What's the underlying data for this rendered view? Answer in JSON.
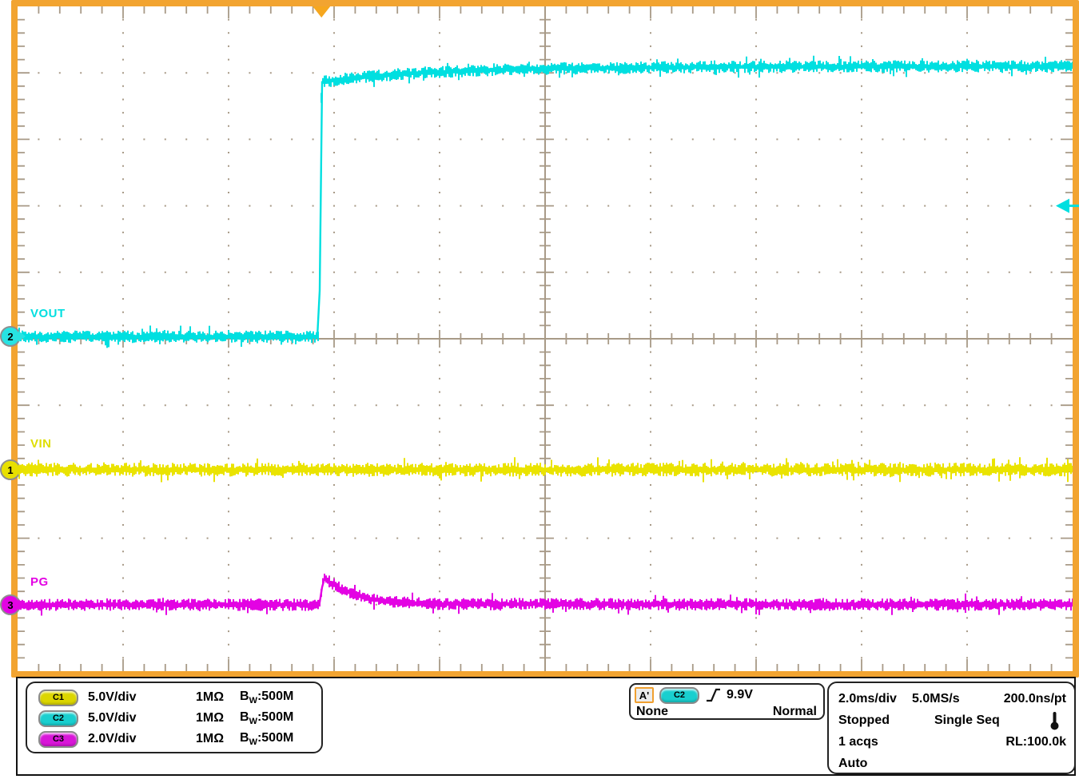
{
  "colors": {
    "frame": "#f2a431",
    "grid": "#a89a87",
    "trigger_marker": "#f6a71f",
    "trigger_arrow": "#00dfe0"
  },
  "channels": [
    {
      "id": "C1",
      "number": "1",
      "label": "VIN",
      "scale": "5.0V/div",
      "impedance": "1MΩ",
      "bw_b": "B",
      "bw_sub": "W",
      "bw_rest": ":500M",
      "color": "#eae300"
    },
    {
      "id": "C2",
      "number": "2",
      "label": "VOUT",
      "scale": "5.0V/div",
      "impedance": "1MΩ",
      "bw_b": "B",
      "bw_sub": "W",
      "bw_rest": ":500M",
      "color": "#00dfe0"
    },
    {
      "id": "C3",
      "number": "3",
      "label": "PG",
      "scale": "2.0V/div",
      "impedance": "1MΩ",
      "bw_b": "B",
      "bw_sub": "W",
      "bw_rest": ":500M",
      "color": "#e303e3"
    }
  ],
  "trigger": {
    "label": "A'",
    "source": "C2",
    "level": "9.9V",
    "slope": "rising",
    "holdoff": "None",
    "mode": "Normal"
  },
  "timebase": {
    "scale": "2.0ms/div",
    "sample_rate": "5.0MS/s",
    "point_resolution": "200.0ns/pt",
    "acq_state": "Stopped",
    "acq_mode": "Single Seq",
    "acq_count": "1 acqs",
    "record_length": "RL:100.0k",
    "trigger_mode": "Auto"
  },
  "chart_data": {
    "type": "line",
    "instrument": "oscilloscope",
    "x_axis": {
      "label": "time",
      "per_div": "2.0ms/div",
      "divisions": 10,
      "total_span": "20ms"
    },
    "y_axis": {
      "divisions": 10,
      "per_div": {
        "C1": "5.0V",
        "C2": "5.0V",
        "C3": "2.0V"
      }
    },
    "grid": "dotted major gridlines, solid center crosshair with minor ticks, tick marks on all edges",
    "trigger": {
      "x_div": 2.88,
      "level_div_above_center": 2.0,
      "source": "C2",
      "level": "9.9V",
      "slope": "rising"
    },
    "series": [
      {
        "name": "VOUT",
        "channel": "C2",
        "color": "#00dfe0",
        "noise_div": 0.085,
        "points_div": [
          [
            0,
            0.03
          ],
          [
            2.86,
            0.03
          ],
          [
            2.88,
            3.86
          ],
          [
            3.2,
            3.93
          ],
          [
            3.8,
            4.0
          ],
          [
            4.8,
            4.06
          ],
          [
            6.5,
            4.09
          ],
          [
            10,
            4.1
          ]
        ],
        "behavior": "flat at center graticule, steps up ~4 divisions (~20V) at trigger point, then soft-start settles upward"
      },
      {
        "name": "VIN",
        "channel": "C1",
        "color": "#eae300",
        "noise_div": 0.095,
        "points_div": [
          [
            0,
            -1.97
          ],
          [
            10,
            -1.97
          ]
        ],
        "behavior": "constant, ~2 divisions below center"
      },
      {
        "name": "PG",
        "channel": "C3",
        "color": "#e303e3",
        "noise_div": 0.085,
        "points_div": [
          [
            0,
            -4.0
          ],
          [
            2.86,
            -4.0
          ],
          [
            2.9,
            -3.6
          ],
          [
            3.08,
            -3.78
          ],
          [
            3.35,
            -3.92
          ],
          [
            3.8,
            -3.99
          ],
          [
            10,
            -4.0
          ]
        ],
        "behavior": "constant 4 divisions below center with small positive glitch at trigger that decays"
      }
    ]
  }
}
